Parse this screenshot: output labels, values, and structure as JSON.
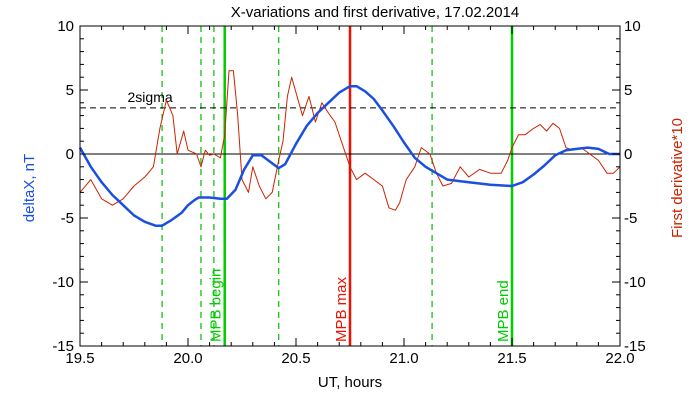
{
  "chart_data": {
    "type": "line",
    "title": "X-variations and first derivative, 17.02.2014",
    "xlabel": "UT, hours",
    "ylabel_left": "deltaX, nT",
    "ylabel_right": "First derivative*10",
    "xlim": [
      19.5,
      22.0
    ],
    "ylim_left": [
      -15,
      10
    ],
    "ylim_right": [
      -15,
      10
    ],
    "x_ticks": [
      "19.5",
      "20.0",
      "20.5",
      "21.0",
      "21.5",
      "22.0"
    ],
    "y_ticks_left": [
      "10",
      "5",
      "0",
      "-5",
      "-10",
      "-15"
    ],
    "y_ticks_right": [
      "10",
      "5",
      "0",
      "-5",
      "-10",
      "-15"
    ],
    "grid": false,
    "reference_lines": {
      "zero": 0,
      "sigma": {
        "value": 3.6,
        "label": "2sigma"
      }
    },
    "series": [
      {
        "name": "deltaX, nT",
        "axis": "left",
        "color": "#1a4fe0",
        "x": [
          19.5,
          19.55,
          19.6,
          19.65,
          19.7,
          19.75,
          19.8,
          19.85,
          19.88,
          19.92,
          19.97,
          20.0,
          20.03,
          20.05,
          20.1,
          20.15,
          20.18,
          20.22,
          20.26,
          20.3,
          20.34,
          20.38,
          20.42,
          20.45,
          20.5,
          20.55,
          20.6,
          20.65,
          20.7,
          20.75,
          20.78,
          20.82,
          20.86,
          20.9,
          20.95,
          21.0,
          21.05,
          21.1,
          21.15,
          21.2,
          21.3,
          21.4,
          21.5,
          21.55,
          21.6,
          21.65,
          21.7,
          21.75,
          21.8,
          21.85,
          21.9,
          21.95,
          22.0
        ],
        "y": [
          0.5,
          -1.0,
          -2.2,
          -3.2,
          -4.0,
          -4.8,
          -5.3,
          -5.6,
          -5.6,
          -5.2,
          -4.6,
          -4.0,
          -3.6,
          -3.4,
          -3.4,
          -3.5,
          -3.5,
          -2.8,
          -1.2,
          -0.1,
          -0.1,
          -0.6,
          -1.1,
          -0.8,
          0.8,
          2.2,
          3.2,
          4.0,
          4.8,
          5.3,
          5.3,
          4.9,
          4.3,
          3.4,
          2.2,
          0.9,
          -0.3,
          -1.0,
          -1.5,
          -2.0,
          -2.2,
          -2.4,
          -2.5,
          -2.2,
          -1.6,
          -0.9,
          -0.1,
          0.3,
          0.4,
          0.5,
          0.4,
          0.0,
          0.0
        ]
      },
      {
        "name": "First derivative*10",
        "axis": "right",
        "color": "#cc2200",
        "x": [
          19.5,
          19.55,
          19.6,
          19.65,
          19.7,
          19.75,
          19.8,
          19.84,
          19.87,
          19.9,
          19.93,
          19.95,
          19.98,
          20.0,
          20.04,
          20.06,
          20.08,
          20.1,
          20.12,
          20.15,
          20.17,
          20.19,
          20.21,
          20.23,
          20.25,
          20.28,
          20.3,
          20.33,
          20.36,
          20.39,
          20.42,
          20.44,
          20.46,
          20.48,
          20.5,
          20.53,
          20.56,
          20.59,
          20.62,
          20.65,
          20.68,
          20.72,
          20.75,
          20.78,
          20.82,
          20.86,
          20.9,
          20.93,
          20.96,
          20.98,
          21.01,
          21.05,
          21.08,
          21.12,
          21.15,
          21.18,
          21.22,
          21.26,
          21.3,
          21.35,
          21.4,
          21.45,
          21.48,
          21.5,
          21.53,
          21.56,
          21.6,
          21.63,
          21.66,
          21.69,
          21.72,
          21.75,
          21.78,
          21.82,
          21.86,
          21.9,
          21.94,
          21.97,
          22.0
        ],
        "y": [
          -3.0,
          -2.0,
          -3.5,
          -4.0,
          -3.5,
          -2.5,
          -1.8,
          -1.0,
          2.0,
          4.2,
          3.0,
          0.0,
          1.8,
          0.3,
          0.0,
          -1.0,
          0.3,
          -0.1,
          0.0,
          -0.3,
          1.5,
          6.5,
          6.5,
          3.0,
          -2.0,
          -3.0,
          -1.0,
          -2.5,
          -3.5,
          -3.0,
          -0.5,
          1.0,
          4.5,
          6.0,
          4.8,
          3.0,
          4.5,
          2.5,
          4.0,
          3.2,
          2.5,
          0.5,
          -1.0,
          -2.0,
          -1.5,
          -2.0,
          -2.5,
          -4.2,
          -4.4,
          -3.8,
          -2.0,
          -1.0,
          0.5,
          0.0,
          -1.5,
          -2.5,
          -2.3,
          -1.0,
          -1.8,
          -1.2,
          -1.5,
          -1.5,
          -0.5,
          0.5,
          1.5,
          1.5,
          2.0,
          2.3,
          1.8,
          2.4,
          2.0,
          0.5,
          0.3,
          0.5,
          0.0,
          -0.5,
          -1.5,
          -1.5,
          -1.0
        ]
      }
    ],
    "vertical_markers": [
      {
        "x": 19.88,
        "color": "#00bb00",
        "style": "dashed",
        "label": ""
      },
      {
        "x": 20.06,
        "color": "#00bb00",
        "style": "dashed",
        "label": ""
      },
      {
        "x": 20.12,
        "color": "#00bb00",
        "style": "dashed",
        "label": ""
      },
      {
        "x": 20.17,
        "color": "#00cc00",
        "style": "solid",
        "label": "MPB begin"
      },
      {
        "x": 20.42,
        "color": "#00bb00",
        "style": "dashed",
        "label": ""
      },
      {
        "x": 20.75,
        "color": "#ee1100",
        "style": "solid",
        "label": "MPB max"
      },
      {
        "x": 21.13,
        "color": "#00bb00",
        "style": "dashed",
        "label": ""
      },
      {
        "x": 21.5,
        "color": "#00cc00",
        "style": "solid",
        "label": "MPB end"
      }
    ]
  }
}
